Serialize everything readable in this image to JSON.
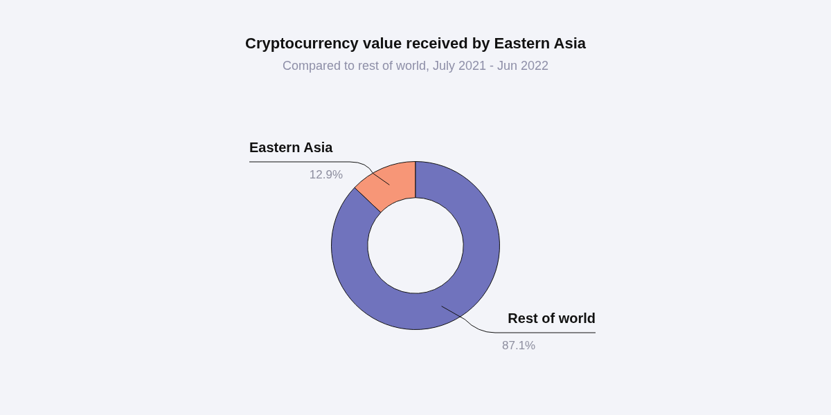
{
  "chart_data": {
    "type": "donut",
    "title": "Cryptocurrency value received by Eastern Asia",
    "subtitle": "Compared to rest of world, July 2021 - Jun 2022",
    "categories": [
      "Eastern Asia",
      "Rest of world"
    ],
    "values": [
      12.9,
      87.1
    ],
    "colors": [
      "#f79677",
      "#7073bd"
    ],
    "value_labels": [
      "12.9%",
      "87.1%"
    ]
  }
}
